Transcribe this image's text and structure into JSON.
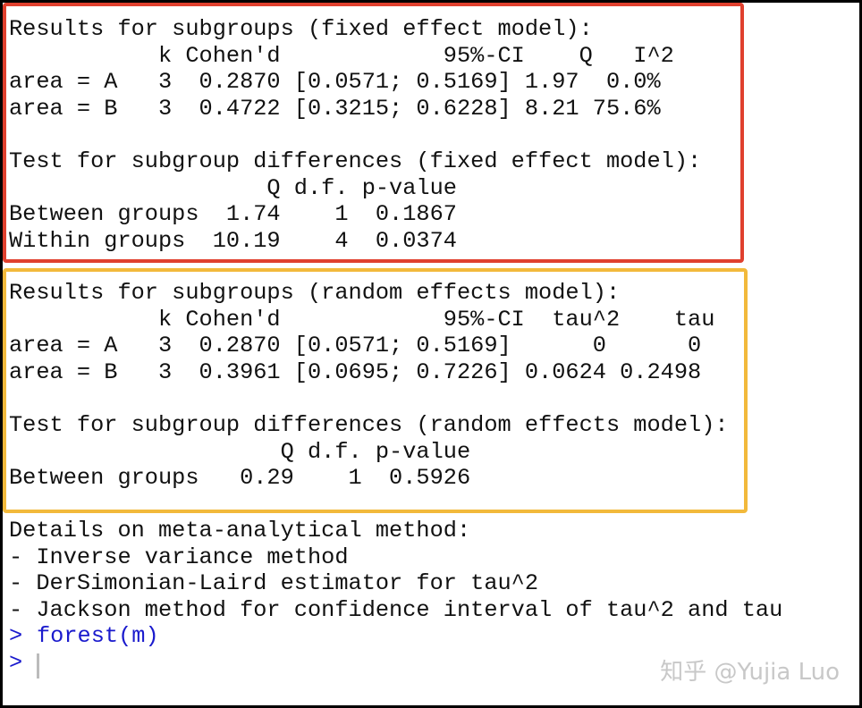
{
  "fixed_effect": {
    "lines": [
      "Results for subgroups (fixed effect model):",
      "           k Cohen'd            95%-CI    Q   I^2",
      "area = A   3  0.2870 [0.0571; 0.5169] 1.97  0.0%",
      "area = B   3  0.4722 [0.3215; 0.6228] 8.21 75.6%",
      "Test for subgroup differences (fixed effect model):",
      "                   Q d.f. p-value",
      "Between groups  1.74    1  0.1867",
      "Within groups  10.19    4  0.0374"
    ]
  },
  "random_effects": {
    "lines": [
      "Results for subgroups (random effects model):",
      "           k Cohen'd            95%-CI  tau^2    tau",
      "area = A   3  0.2870 [0.0571; 0.5169]      0      0",
      "area = B   3  0.3961 [0.0695; 0.7226] 0.0624 0.2498",
      "Test for subgroup differences (random effects model):",
      "                    Q d.f. p-value",
      "Between groups   0.29    1  0.5926"
    ]
  },
  "details": {
    "lines": [
      "Details on meta-analytical method:",
      "- Inverse variance method",
      "- DerSimonian-Laird estimator for tau^2",
      "- Jackson method for confidence interval of tau^2 and tau"
    ]
  },
  "console": {
    "prompt": ">",
    "command": "forest(m)"
  },
  "watermark": "知乎 @Yujia Luo"
}
